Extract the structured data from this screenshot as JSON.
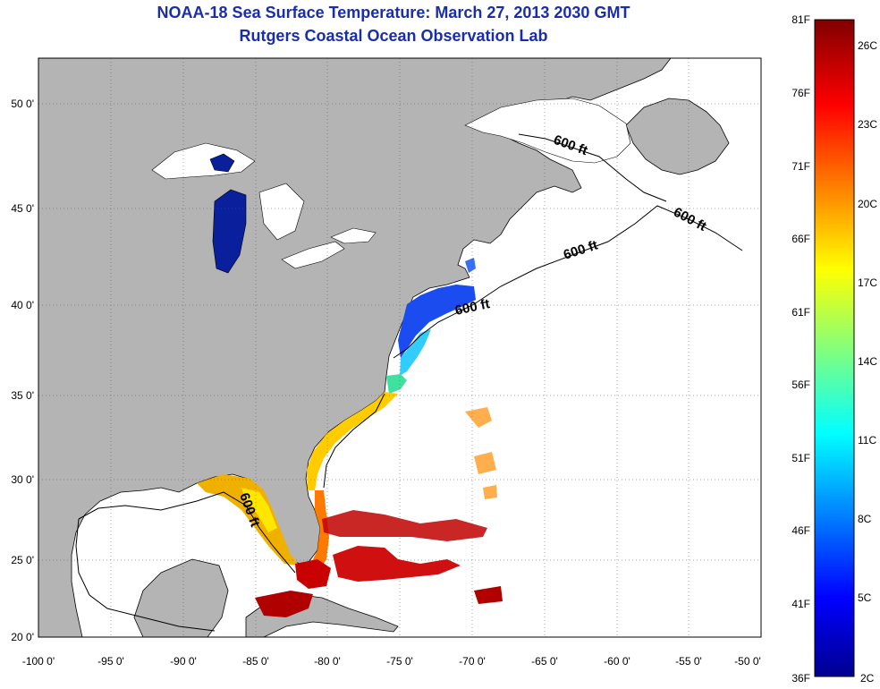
{
  "title": "NOAA-18 Sea Surface Temperature:  March 27, 2013 2030 GMT",
  "subtitle": "Rutgers Coastal Ocean Observation Lab",
  "lat_ticks": [
    "50 0'",
    "45 0'",
    "40 0'",
    "35 0'",
    "30 0'",
    "25 0'",
    "20 0'"
  ],
  "lon_ticks": [
    "-100 0'",
    "-95 0'",
    "-90 0'",
    "-85 0'",
    "-80 0'",
    "-75 0'",
    "-70 0'",
    "-65 0'",
    "-60 0'",
    "-55 0'",
    "-50 0'"
  ],
  "contour_label": "600 ft",
  "colorbar": {
    "f_labels": [
      "81F",
      "76F",
      "71F",
      "66F",
      "61F",
      "56F",
      "51F",
      "46F",
      "41F",
      "36F"
    ],
    "c_labels": [
      "26C",
      "23C",
      "20C",
      "17C",
      "14C",
      "11C",
      "8C",
      "5C",
      "2C"
    ]
  },
  "colors": {
    "land": "#b4b4b4",
    "ocean": "#ffffff",
    "title": "#1a2ea8",
    "lake": "#0a1f9c"
  }
}
